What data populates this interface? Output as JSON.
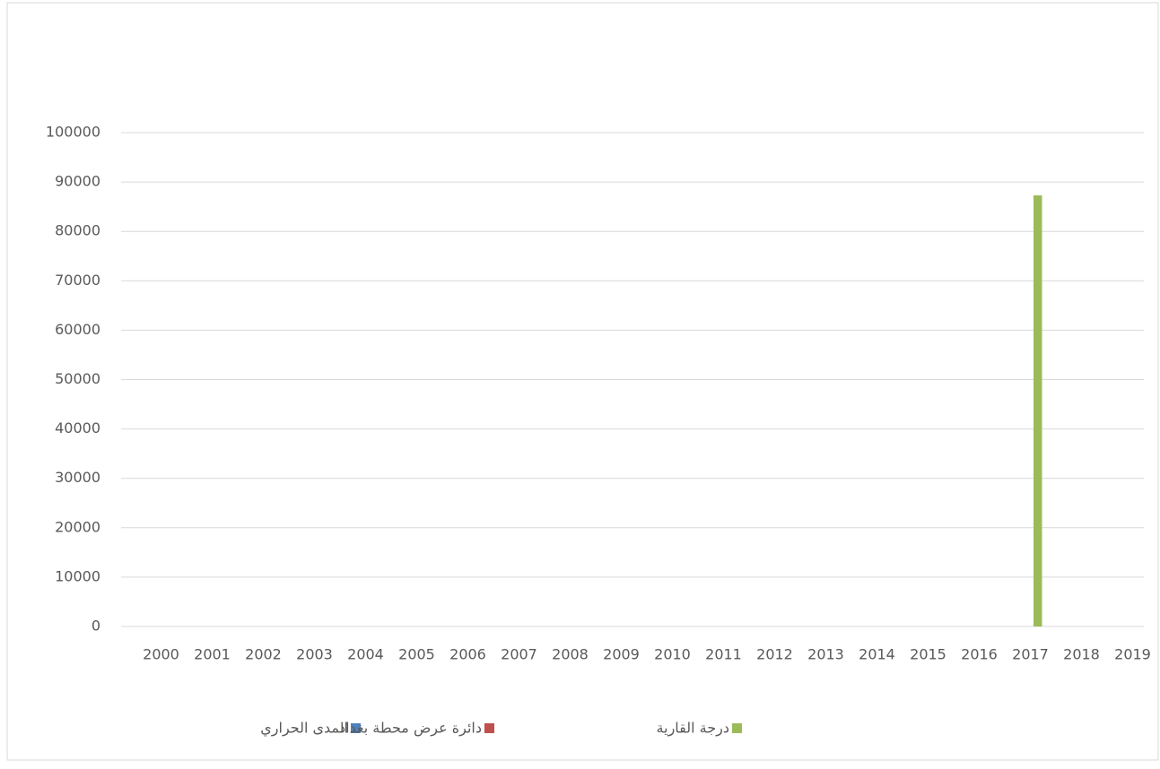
{
  "chart_data": {
    "type": "bar",
    "categories": [
      "2000",
      "2001",
      "2002",
      "2003",
      "2004",
      "2005",
      "2006",
      "2007",
      "2008",
      "2009",
      "2010",
      "2011",
      "2012",
      "2013",
      "2014",
      "2015",
      "2016",
      "2017",
      "2018",
      "2019"
    ],
    "series": [
      {
        "name": "المدى الحراري",
        "color": "#4f81bd",
        "values": [
          0,
          0,
          0,
          0,
          0,
          0,
          0,
          0,
          0,
          0,
          0,
          0,
          0,
          0,
          0,
          0,
          0,
          0,
          0,
          0
        ]
      },
      {
        "name": "دائرة عرض محطة بغداد",
        "color": "#c0504d",
        "values": [
          0,
          0,
          0,
          0,
          0,
          0,
          0,
          0,
          0,
          0,
          0,
          0,
          0,
          0,
          0,
          0,
          0,
          0,
          0,
          0
        ]
      },
      {
        "name": "درجة القارية",
        "color": "#9bbb59",
        "values": [
          0,
          0,
          0,
          0,
          0,
          0,
          0,
          0,
          0,
          0,
          0,
          0,
          0,
          0,
          0,
          0,
          0,
          87300,
          0,
          0
        ]
      }
    ],
    "ylim": [
      0,
      100000
    ],
    "yticks": [
      0,
      10000,
      20000,
      30000,
      40000,
      50000,
      60000,
      70000,
      80000,
      90000,
      100000
    ],
    "grid": true,
    "legend": "bottom"
  }
}
